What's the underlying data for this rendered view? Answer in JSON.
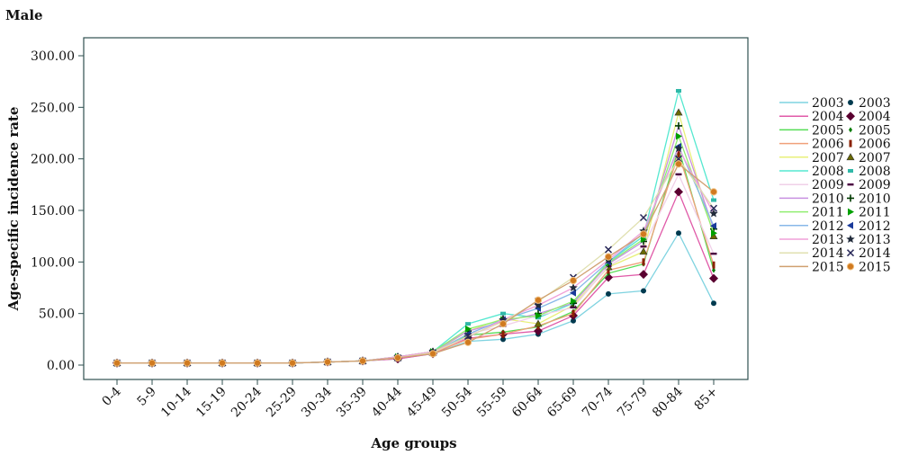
{
  "chart_data": {
    "type": "line",
    "title": "Male",
    "xlabel": "Age groups",
    "ylabel": "Age-specific incidence rate",
    "ylim": [
      0,
      300
    ],
    "y_ticks": [
      "0.00",
      "50.00",
      "100.00",
      "150.00",
      "200.00",
      "250.00",
      "300.00"
    ],
    "categories": [
      "0-4",
      "5-9",
      "10-14",
      "15-19",
      "20-24",
      "25-29",
      "30-34",
      "35-39",
      "40-44",
      "45-49",
      "50-54",
      "55-59",
      "60-64",
      "65-69",
      "70-74",
      "75-79",
      "80-84",
      "85+"
    ],
    "grid": false,
    "legend_position": "right",
    "series": [
      {
        "name": "2003",
        "color": "#7fd3e0",
        "marker": "circle",
        "marker_color": "#003a4f",
        "values": [
          2,
          2,
          2,
          2,
          2,
          2,
          3,
          4,
          6,
          11,
          23,
          25,
          30,
          43,
          69,
          72,
          128,
          60
        ]
      },
      {
        "name": "2004",
        "color": "#e05aa8",
        "marker": "diamond",
        "marker_color": "#5a0030",
        "values": [
          2,
          2,
          2,
          2,
          2,
          2,
          3,
          4,
          6,
          11,
          26,
          30,
          33,
          48,
          85,
          88,
          168,
          84
        ]
      },
      {
        "name": "2005",
        "color": "#55dd55",
        "marker": "small-diamond",
        "marker_color": "#007a00",
        "values": [
          2,
          2,
          2,
          2,
          2,
          2,
          3,
          4,
          7,
          12,
          29,
          32,
          37,
          52,
          89,
          98,
          210,
          92
        ]
      },
      {
        "name": "2006",
        "color": "#f0a07a",
        "marker": "bar",
        "marker_color": "#8a2000",
        "values": [
          2,
          2,
          2,
          2,
          2,
          2,
          3,
          4,
          7,
          12,
          25,
          30,
          38,
          50,
          92,
          100,
          205,
          97
        ]
      },
      {
        "name": "2007",
        "color": "#e8f07a",
        "marker": "triangle",
        "marker_color": "#6a6a00",
        "values": [
          2,
          2,
          2,
          2,
          2,
          2,
          3,
          4,
          7,
          12,
          33,
          45,
          40,
          58,
          95,
          110,
          245,
          125
        ]
      },
      {
        "name": "2008",
        "color": "#55e8d0",
        "marker": "square",
        "marker_color": "#30b8a8",
        "values": [
          2,
          2,
          2,
          2,
          2,
          2,
          3,
          4,
          8,
          13,
          40,
          50,
          46,
          60,
          100,
          125,
          266,
          160
        ]
      },
      {
        "name": "2009",
        "color": "#f0d0e8",
        "marker": "dash",
        "marker_color": "#4a0040",
        "values": [
          2,
          2,
          2,
          2,
          2,
          2,
          3,
          4,
          7,
          12,
          30,
          38,
          48,
          56,
          96,
          115,
          185,
          108
        ]
      },
      {
        "name": "2010",
        "color": "#c890e0",
        "marker": "plus",
        "marker_color": "#003a00",
        "values": [
          2,
          2,
          2,
          2,
          2,
          2,
          3,
          4,
          8,
          13,
          33,
          42,
          50,
          60,
          98,
          120,
          232,
          132
        ]
      },
      {
        "name": "2011",
        "color": "#90ee70",
        "marker": "arrow-right",
        "marker_color": "#00a000",
        "values": [
          2,
          2,
          2,
          2,
          2,
          2,
          3,
          4,
          8,
          13,
          35,
          44,
          48,
          62,
          99,
          122,
          222,
          128
        ]
      },
      {
        "name": "2012",
        "color": "#88b8e8",
        "marker": "arrow-left",
        "marker_color": "#1a3a9a",
        "values": [
          2,
          2,
          2,
          2,
          2,
          2,
          3,
          4,
          7,
          12,
          30,
          44,
          55,
          70,
          100,
          128,
          212,
          135
        ]
      },
      {
        "name": "2013",
        "color": "#f0a0d8",
        "marker": "star",
        "marker_color": "#202a3a",
        "values": [
          2,
          2,
          2,
          2,
          2,
          2,
          3,
          4,
          8,
          13,
          27,
          44,
          58,
          75,
          102,
          130,
          210,
          147
        ]
      },
      {
        "name": "2014",
        "color": "#e0e0b0",
        "marker": "x",
        "marker_color": "#2a2a5a",
        "values": [
          2,
          2,
          2,
          2,
          2,
          2,
          3,
          4,
          7,
          12,
          28,
          42,
          62,
          85,
          112,
          143,
          200,
          152
        ]
      },
      {
        "name": "2015",
        "color": "#d0a070",
        "marker": "orange-circle",
        "marker_color": "#d07a20",
        "values": [
          2,
          2,
          2,
          2,
          2,
          2,
          3,
          4,
          7,
          11,
          22,
          40,
          63,
          82,
          105,
          127,
          195,
          168
        ]
      }
    ]
  }
}
